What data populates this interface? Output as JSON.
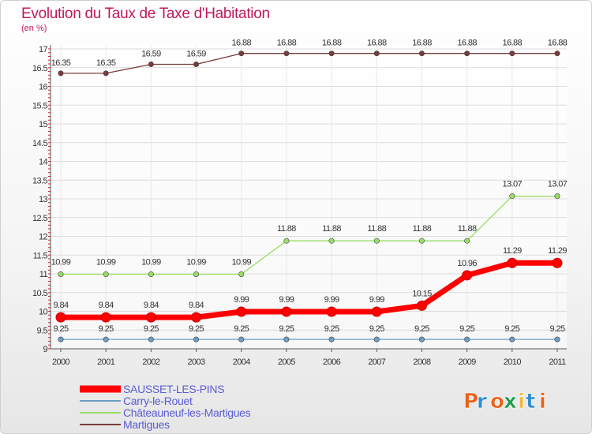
{
  "chart_data": {
    "type": "line",
    "title": "Evolution du Taux de Taxe d'Habitation",
    "ylabel": "(en %)",
    "xlabel": "",
    "ylim": [
      9,
      17
    ],
    "yticks": [
      "9",
      "9.5",
      "10",
      "10.5",
      "11",
      "11.5",
      "12",
      "12.5",
      "13",
      "13.5",
      "14",
      "14.5",
      "15",
      "15.5",
      "16",
      "16.5",
      "17"
    ],
    "x": [
      "2000",
      "2001",
      "2002",
      "2003",
      "2004",
      "2005",
      "2006",
      "2007",
      "2008",
      "2009",
      "2010",
      "2011"
    ],
    "series": [
      {
        "name": "SAUSSET-LES-PINS",
        "color": "#ff0000",
        "values": [
          9.84,
          9.84,
          9.84,
          9.84,
          9.99,
          9.99,
          9.99,
          9.99,
          10.15,
          10.96,
          11.29,
          11.29
        ],
        "labels": [
          "9.84",
          "9.84",
          "9.84",
          "9.84",
          "9.99",
          "9.99",
          "9.99",
          "9.99",
          "10.15",
          "10.96",
          "11.29",
          "11.29"
        ]
      },
      {
        "name": "Carry-le-Rouet",
        "color": "#6d9ec4",
        "values": [
          9.25,
          9.25,
          9.25,
          9.25,
          9.25,
          9.25,
          9.25,
          9.25,
          9.25,
          9.25,
          9.25,
          9.25
        ],
        "labels": [
          "9.25",
          "9.25",
          "9.25",
          "9.25",
          "9.25",
          "9.25",
          "9.25",
          "9.25",
          "9.25",
          "9.25",
          "9.25",
          "9.25"
        ]
      },
      {
        "name": "Châteauneuf-les-Martigues",
        "color": "#99dd66",
        "values": [
          10.99,
          10.99,
          10.99,
          10.99,
          10.99,
          11.88,
          11.88,
          11.88,
          11.88,
          11.88,
          13.07,
          13.07
        ],
        "labels": [
          "10.99",
          "10.99",
          "10.99",
          "10.99",
          "10.99",
          "11.88",
          "11.88",
          "11.88",
          "11.88",
          "11.88",
          "13.07",
          "13.07"
        ]
      },
      {
        "name": "Martigues",
        "color": "#7a3b3b",
        "values": [
          16.35,
          16.35,
          16.59,
          16.59,
          16.88,
          16.88,
          16.88,
          16.88,
          16.88,
          16.88,
          16.88,
          16.88
        ],
        "labels": [
          "16.35",
          "16.35",
          "16.59",
          "16.59",
          "16.88",
          "16.88",
          "16.88",
          "16.88",
          "16.88",
          "16.88",
          "16.88",
          "16.88"
        ]
      }
    ],
    "legend_position": "bottom-left"
  },
  "logo": {
    "text": "Proxiti",
    "colors": [
      "#e8621a",
      "#2e8bd0",
      "#e8621a",
      "#1a9e4b",
      "#f2b632",
      "#2e8bd0",
      "#e8621a"
    ]
  }
}
